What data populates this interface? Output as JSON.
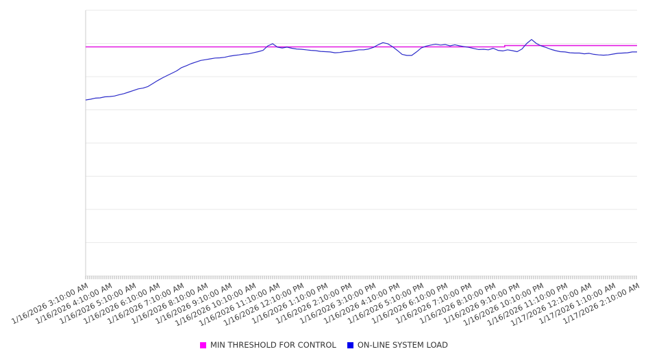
{
  "page": {
    "background": "#ffffff"
  },
  "legend": {
    "items": [
      {
        "label": "MIN THRESHOLD FOR CONTROL",
        "color": "#ff00ff"
      },
      {
        "label": "ON-LINE SYSTEM LOAD",
        "color": "#0000ee"
      }
    ]
  },
  "chart_data": {
    "type": "line",
    "title": "",
    "xlabel": "",
    "ylabel": "",
    "grid": "horizontal",
    "legend_position": "bottom",
    "x_tick_labels": [
      "1/16/2026 3:10:00 AM",
      "1/16/2026 4:10:00 AM",
      "1/16/2026 5:10:00 AM",
      "1/16/2026 6:10:00 AM",
      "1/16/2026 7:10:00 AM",
      "1/16/2026 8:10:00 AM",
      "1/16/2026 9:10:00 AM",
      "1/16/2026 10:10:00 AM",
      "1/16/2026 11:10:00 AM",
      "1/16/2026 12:10:00 PM",
      "1/16/2026 1:10:00 PM",
      "1/16/2026 2:10:00 PM",
      "1/16/2026 3:10:00 PM",
      "1/16/2026 4:10:00 PM",
      "1/16/2026 5:10:00 PM",
      "1/16/2026 6:10:00 PM",
      "1/16/2026 7:10:00 PM",
      "1/16/2026 8:10:00 PM",
      "1/16/2026 9:10:00 PM",
      "1/16/2026 10:10:00 PM",
      "1/16/2026 11:10:00 PM",
      "1/17/2026 12:10:00 AM",
      "1/17/2026 1:10:00 AM",
      "1/17/2026 2:10:00 AM"
    ],
    "y_axis": {
      "tick_labels_visible": false,
      "estimated_range": [
        0,
        100
      ],
      "gridline_count": 9
    },
    "note": "y-axis has no visible tick labels; series values are estimated on a relative 0-100 scale from gridlines",
    "series": [
      {
        "name": "MIN THRESHOLD FOR CONTROL",
        "color": "#e318e3",
        "style": "threshold-step",
        "segments": [
          {
            "x_frac_from": 0.0,
            "x_frac_to": 0.76,
            "value": 86.2
          },
          {
            "x_frac_from": 0.76,
            "x_frac_to": 1.0,
            "value": 86.7
          }
        ]
      },
      {
        "name": "ON-LINE SYSTEM LOAD",
        "color": "#2b2bc9",
        "style": "line",
        "values": [
          66.2,
          66.5,
          66.9,
          67.0,
          67.4,
          67.5,
          67.7,
          68.2,
          68.6,
          69.2,
          69.8,
          70.4,
          70.7,
          71.3,
          72.4,
          73.5,
          74.5,
          75.4,
          76.3,
          77.2,
          78.4,
          79.1,
          79.9,
          80.5,
          81.1,
          81.4,
          81.7,
          82.0,
          82.1,
          82.3,
          82.7,
          83.0,
          83.2,
          83.5,
          83.6,
          84.0,
          84.4,
          84.9,
          86.6,
          87.4,
          86.1,
          85.8,
          86.1,
          85.7,
          85.4,
          85.3,
          85.1,
          84.9,
          84.8,
          84.5,
          84.4,
          84.3,
          84.0,
          84.1,
          84.4,
          84.5,
          84.8,
          85.1,
          85.1,
          85.4,
          86.0,
          87.0,
          87.8,
          87.4,
          86.3,
          84.9,
          83.4,
          83.0,
          83.0,
          84.3,
          85.8,
          86.5,
          86.9,
          87.2,
          86.9,
          87.1,
          86.6,
          87.0,
          86.6,
          86.3,
          86.0,
          85.6,
          85.2,
          85.3,
          85.1,
          85.7,
          84.9,
          84.7,
          85.1,
          84.8,
          84.4,
          85.4,
          87.5,
          89.0,
          87.5,
          86.6,
          86.0,
          85.3,
          84.8,
          84.4,
          84.3,
          84.0,
          83.9,
          83.9,
          83.6,
          83.8,
          83.4,
          83.2,
          83.1,
          83.2,
          83.5,
          83.8,
          83.9,
          84.0,
          84.3,
          84.3
        ]
      }
    ]
  }
}
